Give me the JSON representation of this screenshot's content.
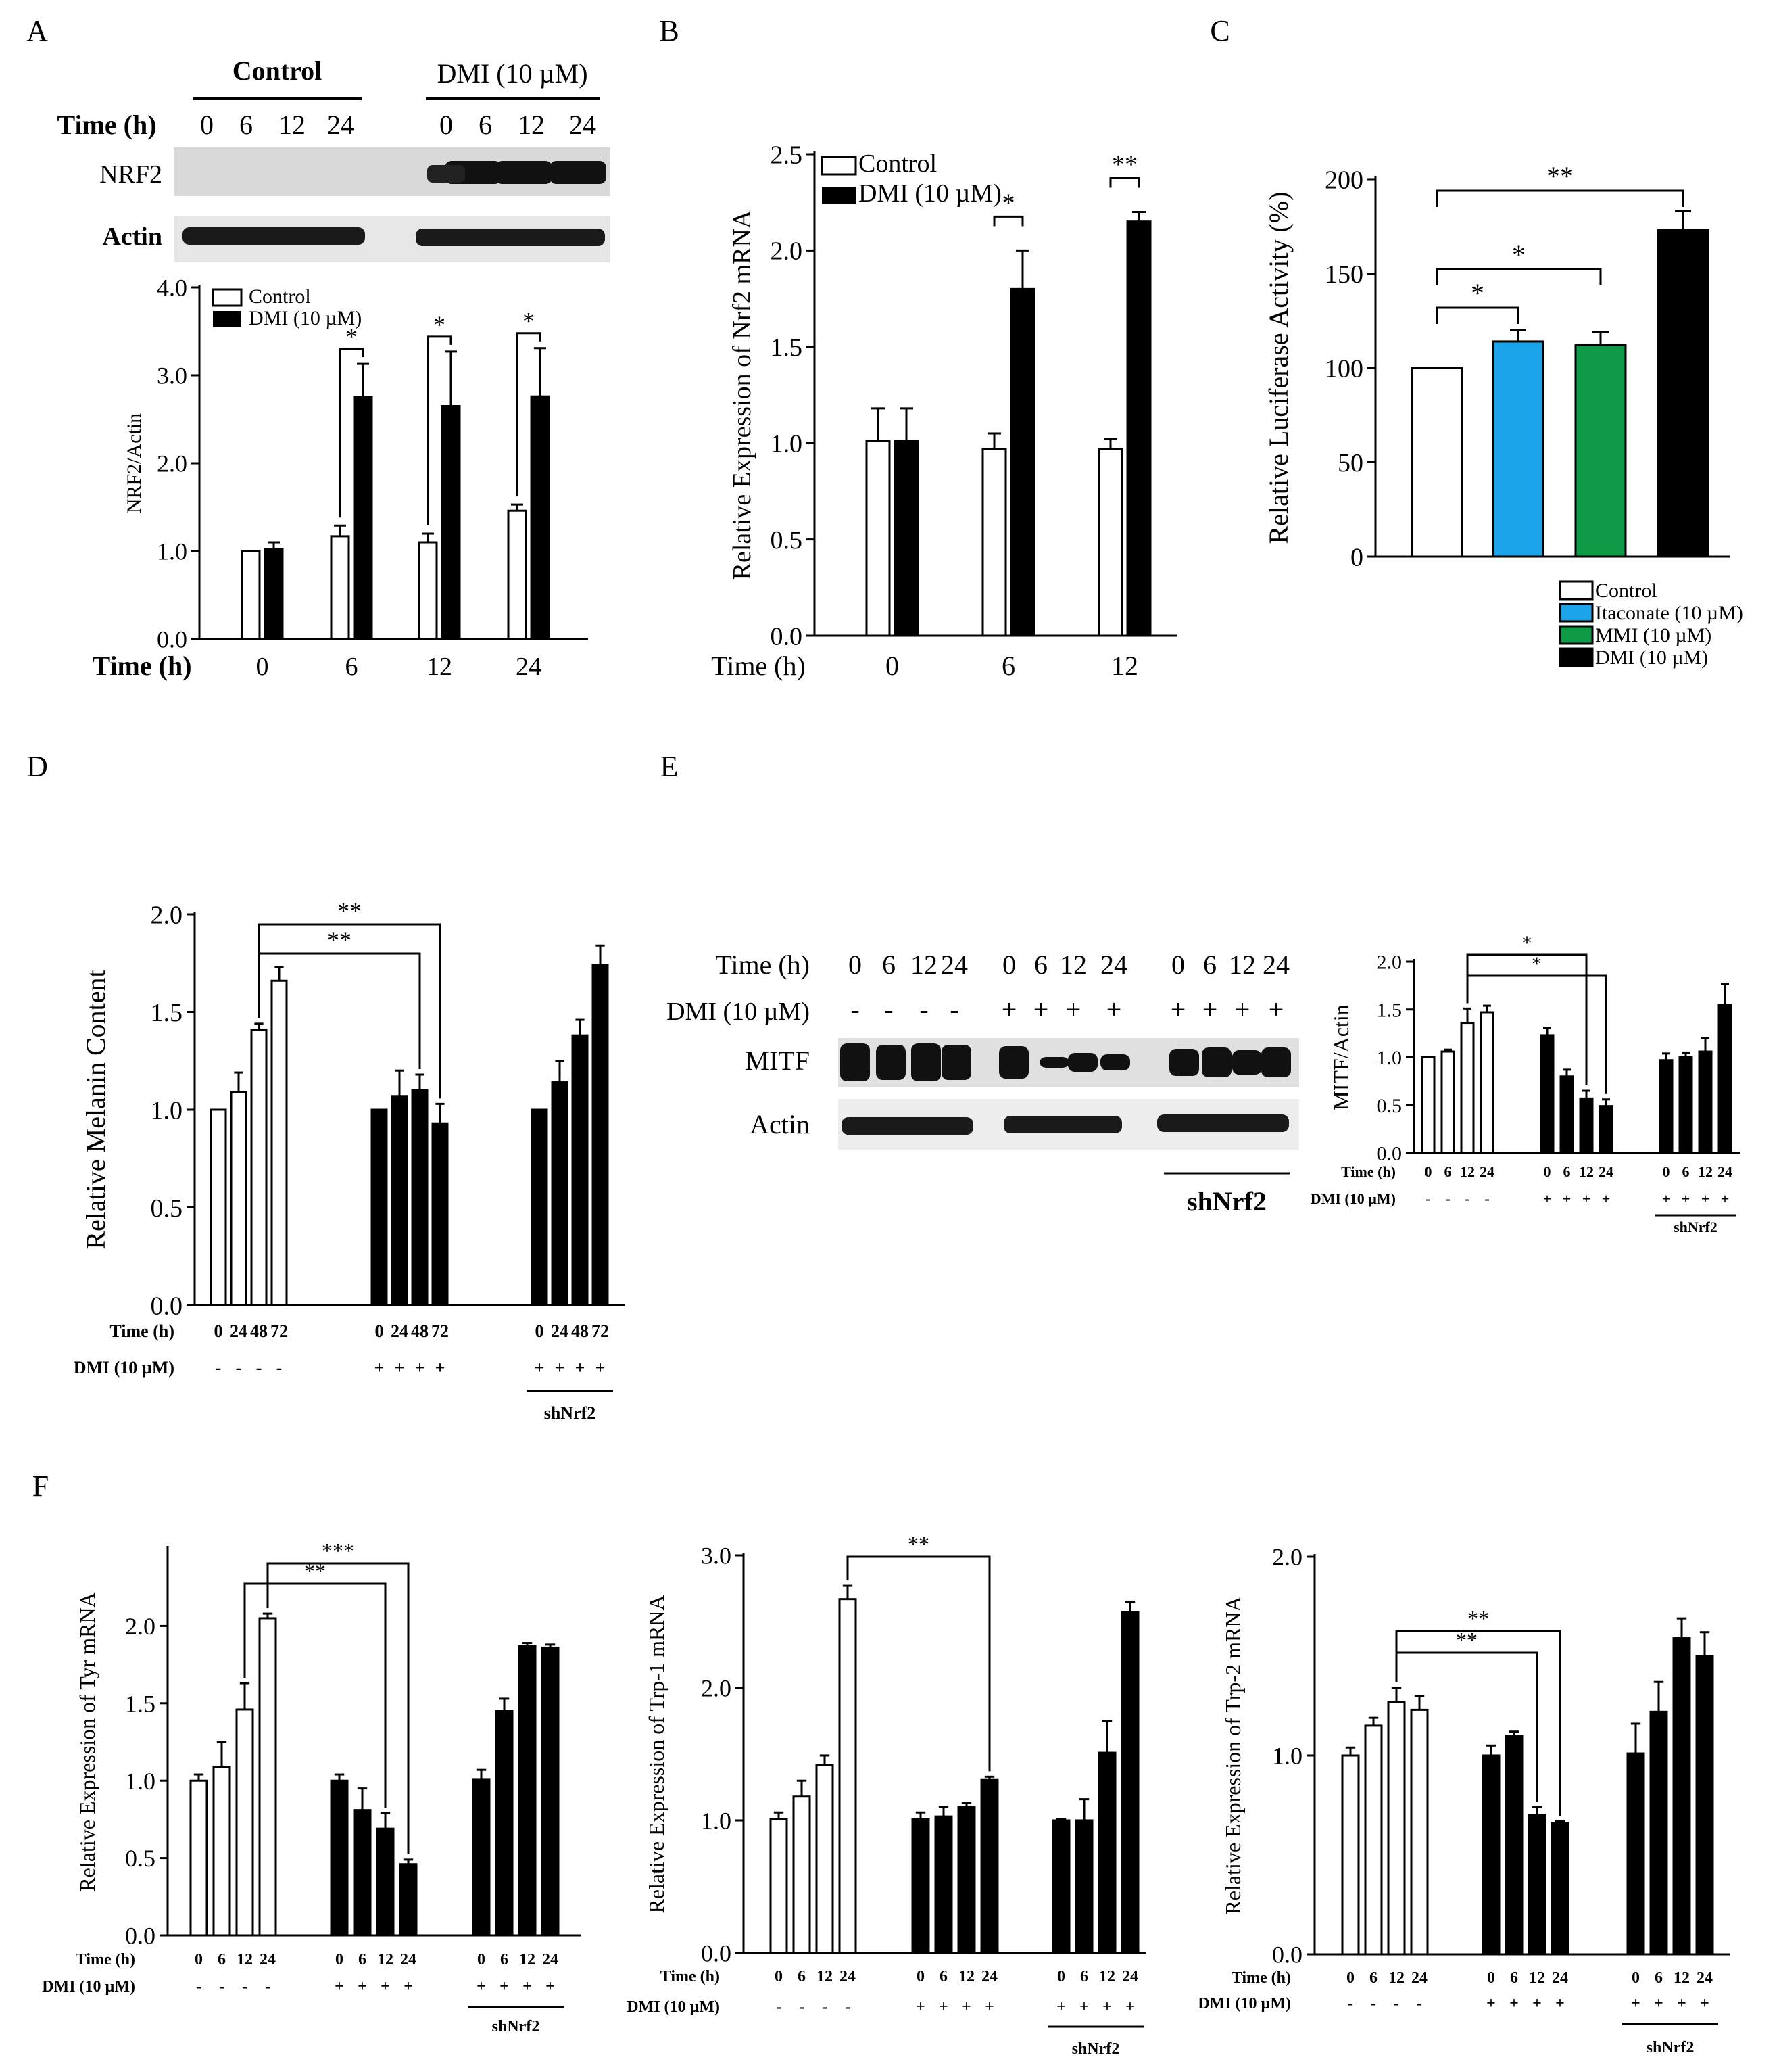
{
  "chart_data": [
    {
      "id": "A",
      "panel_label": "A",
      "type": "bar",
      "blot": {
        "group_labels": [
          "Control",
          "DMI (10 µM)"
        ],
        "time_label": "Time (h)",
        "time_ticks": [
          "0",
          "6",
          "12",
          "24",
          "0",
          "6",
          "12",
          "24"
        ],
        "rows": [
          "NRF2",
          "Actin"
        ]
      },
      "ylabel": "NRF2/Actin",
      "xlabel": "Time (h)",
      "ylim": [
        0,
        4
      ],
      "yticks": [
        "0.0",
        "1.0",
        "2.0",
        "3.0",
        "4.0"
      ],
      "categories": [
        "0",
        "6",
        "12",
        "24"
      ],
      "series": [
        {
          "name": "Control",
          "values": [
            1.0,
            1.17,
            1.1,
            1.46
          ],
          "errors": [
            0.0,
            0.12,
            0.1,
            0.07
          ]
        },
        {
          "name": "DMI (10 µM)",
          "values": [
            1.02,
            2.75,
            2.65,
            2.76
          ],
          "errors": [
            0.08,
            0.38,
            0.62,
            0.55
          ]
        }
      ],
      "significance": [
        {
          "category": 1,
          "label": "*"
        },
        {
          "category": 2,
          "label": "*"
        },
        {
          "category": 3,
          "label": "*"
        }
      ]
    },
    {
      "id": "B",
      "panel_label": "B",
      "type": "bar",
      "ylabel": "Relative Expression of Nrf2 mRNA",
      "xlabel": "Time (h)",
      "ylim": [
        0,
        2.5
      ],
      "yticks": [
        "0.0",
        "0.5",
        "1.0",
        "1.5",
        "2.0",
        "2.5"
      ],
      "categories": [
        "0",
        "6",
        "12"
      ],
      "series": [
        {
          "name": "Control",
          "values": [
            1.01,
            0.97,
            0.97
          ],
          "errors": [
            0.17,
            0.08,
            0.05
          ]
        },
        {
          "name": "DMI (10 µM)",
          "values": [
            1.01,
            1.8,
            2.15
          ],
          "errors": [
            0.17,
            0.2,
            0.05
          ]
        }
      ],
      "significance": [
        {
          "category": 1,
          "label": "*"
        },
        {
          "category": 2,
          "label": "**"
        }
      ]
    },
    {
      "id": "C",
      "panel_label": "C",
      "type": "bar",
      "ylabel": "Relative Luciferase Activity (%)",
      "ylim": [
        0,
        200
      ],
      "yticks": [
        "0",
        "50",
        "100",
        "150",
        "200"
      ],
      "categories": [
        "Control",
        "Itaconate (10 µM)",
        "MMI (10 µM)",
        "DMI (10 µM)"
      ],
      "values": [
        100,
        114,
        112,
        173
      ],
      "errors": [
        0,
        6,
        7,
        10
      ],
      "colors": [
        "#ffffff",
        "#1aa3e8",
        "#0f9a48",
        "#000000"
      ],
      "comparisons": [
        {
          "from": 0,
          "to": 1,
          "label": "*"
        },
        {
          "from": 0,
          "to": 2,
          "label": "*"
        },
        {
          "from": 0,
          "to": 3,
          "label": "**"
        }
      ]
    },
    {
      "id": "D",
      "panel_label": "D",
      "type": "bar",
      "ylabel": "Relative Melanin Content",
      "ylim": [
        0,
        2
      ],
      "yticks": [
        "0.0",
        "0.5",
        "1.0",
        "1.5",
        "2.0"
      ],
      "time_label": "Time (h)",
      "dmi_label": "DMI (10 µM)",
      "sh_label": "shNrf2",
      "groups": [
        {
          "color": "white",
          "ticks": [
            "0",
            "24",
            "48",
            "72"
          ],
          "signs": [
            "-",
            "-",
            "-",
            "-"
          ],
          "values": [
            1.0,
            1.09,
            1.41,
            1.66
          ],
          "errors": [
            0,
            0.1,
            0.03,
            0.07
          ],
          "sh": false
        },
        {
          "color": "black",
          "ticks": [
            "0",
            "24",
            "48",
            "72"
          ],
          "signs": [
            "+",
            "+",
            "+",
            "+"
          ],
          "values": [
            1.0,
            1.07,
            1.1,
            0.93
          ],
          "errors": [
            0,
            0.13,
            0.08,
            0.1
          ],
          "sh": false
        },
        {
          "color": "black",
          "ticks": [
            "0",
            "24",
            "48",
            "72"
          ],
          "signs": [
            "+",
            "+",
            "+",
            "+"
          ],
          "values": [
            1.0,
            1.14,
            1.38,
            1.74
          ],
          "errors": [
            0,
            0.11,
            0.08,
            0.1
          ],
          "sh": true
        }
      ],
      "comparisons": [
        {
          "from": [
            0,
            2
          ],
          "to": [
            1,
            2
          ],
          "label": "**"
        },
        {
          "from": [
            0,
            2
          ],
          "to": [
            1,
            3
          ],
          "label": "**"
        }
      ]
    },
    {
      "id": "E",
      "panel_label": "E",
      "type": "bar",
      "blot": {
        "time_label": "Time (h)",
        "dmi_label": "DMI (10 µM)",
        "time_ticks": [
          "0",
          "6",
          "12",
          "24",
          "0",
          "6",
          "12",
          "24",
          "0",
          "6",
          "12",
          "24"
        ],
        "signs": [
          "-",
          "-",
          "-",
          "-",
          "+",
          "+",
          "+",
          "+",
          "+",
          "+",
          "+",
          "+"
        ],
        "rows": [
          "MITF",
          "Actin"
        ],
        "sh_label": "shNrf2"
      },
      "ylabel": "MITF/Actin",
      "ylim": [
        0,
        2
      ],
      "yticks": [
        "0.0",
        "0.5",
        "1.0",
        "1.5",
        "2.0"
      ],
      "time_label": "Time (h)",
      "dmi_label": "DMI (10 µM)",
      "sh_label": "shNrf2",
      "groups": [
        {
          "color": "white",
          "ticks": [
            "0",
            "6",
            "12",
            "24"
          ],
          "signs": [
            "-",
            "-",
            "-",
            "-"
          ],
          "values": [
            1.0,
            1.06,
            1.36,
            1.47
          ],
          "errors": [
            0,
            0.02,
            0.15,
            0.07
          ],
          "sh": false
        },
        {
          "color": "black",
          "ticks": [
            "0",
            "6",
            "12",
            "24"
          ],
          "signs": [
            "+",
            "+",
            "+",
            "+"
          ],
          "values": [
            1.23,
            0.8,
            0.57,
            0.49
          ],
          "errors": [
            0.08,
            0.07,
            0.08,
            0.07
          ],
          "sh": false
        },
        {
          "color": "black",
          "ticks": [
            "0",
            "6",
            "12",
            "24"
          ],
          "signs": [
            "+",
            "+",
            "+",
            "+"
          ],
          "values": [
            0.97,
            1.0,
            1.06,
            1.55
          ],
          "errors": [
            0.07,
            0.05,
            0.14,
            0.22
          ],
          "sh": true
        }
      ],
      "comparisons": [
        {
          "from": [
            0,
            2
          ],
          "to": [
            1,
            2
          ],
          "label": "*"
        },
        {
          "from": [
            0,
            2
          ],
          "to": [
            1,
            3
          ],
          "label": "*"
        }
      ]
    },
    {
      "id": "F1",
      "panel_label": "F",
      "type": "bar",
      "ylabel": "Relative Expression of Tyr mRNA",
      "ylim": [
        0,
        2.5
      ],
      "yticks": [
        "0.0",
        "0.5",
        "1.0",
        "1.5",
        "2.0"
      ],
      "time_label": "Time (h)",
      "dmi_label": "DMI (10 µM)",
      "sh_label": "shNrf2",
      "groups": [
        {
          "color": "white",
          "ticks": [
            "0",
            "6",
            "12",
            "24"
          ],
          "signs": [
            "-",
            "-",
            "-",
            "-"
          ],
          "values": [
            1.0,
            1.09,
            1.46,
            2.05
          ],
          "errors": [
            0.04,
            0.16,
            0.17,
            0.03
          ],
          "sh": false
        },
        {
          "color": "black",
          "ticks": [
            "0",
            "6",
            "12",
            "24"
          ],
          "signs": [
            "+",
            "+",
            "+",
            "+"
          ],
          "values": [
            1.0,
            0.81,
            0.69,
            0.46
          ],
          "errors": [
            0.04,
            0.14,
            0.1,
            0.03
          ],
          "sh": false
        },
        {
          "color": "black",
          "ticks": [
            "0",
            "6",
            "12",
            "24"
          ],
          "signs": [
            "+",
            "+",
            "+",
            "+"
          ],
          "values": [
            1.01,
            1.45,
            1.87,
            1.86
          ],
          "errors": [
            0.06,
            0.08,
            0.02,
            0.02
          ],
          "sh": true
        }
      ],
      "comparisons": [
        {
          "from": [
            0,
            2
          ],
          "to": [
            1,
            2
          ],
          "label": "**"
        },
        {
          "from": [
            0,
            3
          ],
          "to": [
            1,
            3
          ],
          "label": "***"
        }
      ]
    },
    {
      "id": "F2",
      "panel_label": "",
      "type": "bar",
      "ylabel": "Relative Expression of Trp-1 mRNA",
      "ylim": [
        0,
        3
      ],
      "yticks": [
        "0.0",
        "1.0",
        "2.0",
        "3.0"
      ],
      "time_label": "Time (h)",
      "dmi_label": "DMI (10 µM)",
      "sh_label": "shNrf2",
      "groups": [
        {
          "color": "white",
          "ticks": [
            "0",
            "6",
            "12",
            "24"
          ],
          "signs": [
            "-",
            "-",
            "-",
            "-"
          ],
          "values": [
            1.01,
            1.18,
            1.42,
            2.67
          ],
          "errors": [
            0.05,
            0.12,
            0.07,
            0.1
          ],
          "sh": false
        },
        {
          "color": "black",
          "ticks": [
            "0",
            "6",
            "12",
            "24"
          ],
          "signs": [
            "+",
            "+",
            "+",
            "+"
          ],
          "values": [
            1.01,
            1.03,
            1.1,
            1.31
          ],
          "errors": [
            0.05,
            0.07,
            0.03,
            0.02
          ],
          "sh": false
        },
        {
          "color": "black",
          "ticks": [
            "0",
            "6",
            "12",
            "24"
          ],
          "signs": [
            "+",
            "+",
            "+",
            "+"
          ],
          "values": [
            1.0,
            1.0,
            1.51,
            2.57
          ],
          "errors": [
            0.01,
            0.16,
            0.24,
            0.08
          ],
          "sh": true
        }
      ],
      "comparisons": [
        {
          "from": [
            0,
            3
          ],
          "to": [
            1,
            3
          ],
          "label": "**"
        }
      ]
    },
    {
      "id": "F3",
      "panel_label": "",
      "type": "bar",
      "ylabel": "Relative Expression of Trp-2 mRNA",
      "ylim": [
        0,
        2
      ],
      "yticks": [
        "0.0",
        "1.0",
        "2.0"
      ],
      "time_label": "Time (h)",
      "dmi_label": "DMI (10 µM)",
      "sh_label": "shNrf2",
      "groups": [
        {
          "color": "white",
          "ticks": [
            "0",
            "6",
            "12",
            "24"
          ],
          "signs": [
            "-",
            "-",
            "-",
            "-"
          ],
          "values": [
            1.0,
            1.15,
            1.27,
            1.23
          ],
          "errors": [
            0.04,
            0.04,
            0.07,
            0.07
          ],
          "sh": false
        },
        {
          "color": "black",
          "ticks": [
            "0",
            "6",
            "12",
            "24"
          ],
          "signs": [
            "+",
            "+",
            "+",
            "+"
          ],
          "values": [
            1.0,
            1.1,
            0.7,
            0.66
          ],
          "errors": [
            0.05,
            0.02,
            0.04,
            0.01
          ],
          "sh": false
        },
        {
          "color": "black",
          "ticks": [
            "0",
            "6",
            "12",
            "24"
          ],
          "signs": [
            "+",
            "+",
            "+",
            "+"
          ],
          "values": [
            1.01,
            1.22,
            1.59,
            1.5
          ],
          "errors": [
            0.15,
            0.15,
            0.1,
            0.12
          ],
          "sh": true
        }
      ],
      "comparisons": [
        {
          "from": [
            0,
            2
          ],
          "to": [
            1,
            2
          ],
          "label": "**"
        },
        {
          "from": [
            0,
            2
          ],
          "to": [
            1,
            3
          ],
          "label": "**"
        }
      ]
    }
  ]
}
